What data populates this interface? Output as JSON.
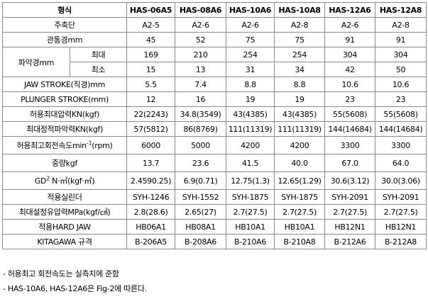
{
  "table": {
    "header": [
      "형식",
      "HAS-06A5",
      "HAS-08A6",
      "HAS-10A6",
      "HAS-10A8",
      "HAS-12A6",
      "HAS-12A8"
    ],
    "rows": [
      {
        "label": "주축단",
        "values": [
          "A2-5",
          "A2-6",
          "A2-6",
          "A2-8",
          "A2-6",
          "A2-8"
        ]
      },
      {
        "label": "관통경mm",
        "values": [
          "45",
          "52",
          "75",
          "75",
          "91",
          "91"
        ]
      },
      {
        "group_label": "파악경mm",
        "sub_label": "최대",
        "values": [
          "169",
          "210",
          "254",
          "254",
          "304",
          "304"
        ]
      },
      {
        "sub_label": "최소",
        "values": [
          "15",
          "13",
          "31",
          "34",
          "42",
          "50"
        ]
      },
      {
        "label": "JAW STROKE(직경)mm",
        "values": [
          "5.5",
          "7.4",
          "8.8",
          "8.8",
          "10.6",
          "10.6"
        ]
      },
      {
        "label": "PLUNGER STROKE(mm)",
        "values": [
          "12",
          "16",
          "19",
          "19",
          "23",
          "23"
        ]
      },
      {
        "label": "허용최대압력KN(kgf)",
        "values": [
          "22(2243)",
          "34.8(3549)",
          "43(4385)",
          "43(4385)",
          "55(5608)",
          "55(5608)"
        ]
      },
      {
        "label": "최대정적파악력KN(kgf)",
        "values": [
          "57(5812)",
          "86(8769)",
          "111(11319)",
          "111(11319)",
          "144(14684)",
          "144(14684)"
        ]
      },
      {
        "label_main": "허용최고회전속도min",
        "label_sup": "-1",
        "label_tail": "(rpm)",
        "values": [
          "6000",
          "5000",
          "4200",
          "4200",
          "3300",
          "3300"
        ]
      },
      {
        "label": "중량kgf",
        "values": [
          "13.7",
          "23.6",
          "41.5",
          "40.0",
          "67.0",
          "64.0"
        ]
      },
      {
        "label_main": "GD",
        "label_sup": "2",
        "label_tail": " N·㎡(kgf·㎡)",
        "values": [
          "2.4590.25)",
          "6.9(0.71)",
          "12.75(1.3)",
          "12.65(1.29)",
          "30.6(3.12)",
          "30.0(3.06)"
        ]
      },
      {
        "label": "적용실린더",
        "values": [
          "SYH-1246",
          "SYH-1552",
          "SYH-1875",
          "SYH-1875",
          "SYH-2091",
          "SYH-2091"
        ]
      },
      {
        "label": "최대설정유압력MPa(kgf/㎠)",
        "values": [
          "2.8(28.6)",
          "2.65(27)",
          "2.7(27.5)",
          "2.7(27.5)",
          "2.7(27.5)",
          "2.7(27.5)"
        ]
      },
      {
        "label": "적용HARD JAW",
        "values": [
          "HB06A1",
          "HB08A1",
          "HB10A1",
          "HB10A1",
          "HB12N1",
          "HB12N1"
        ]
      },
      {
        "label": "KITAGAWA 규격",
        "values": [
          "B-206A5",
          "B-208A6",
          "B-210A6",
          "B-210A8",
          "B-212A6",
          "B-212A8"
        ]
      }
    ]
  },
  "notes": [
    "- 허용최고 회전속도는 실측치에 준함",
    "- HAS-10A6, HAS-12A6은 Fig-2에 따른다."
  ]
}
